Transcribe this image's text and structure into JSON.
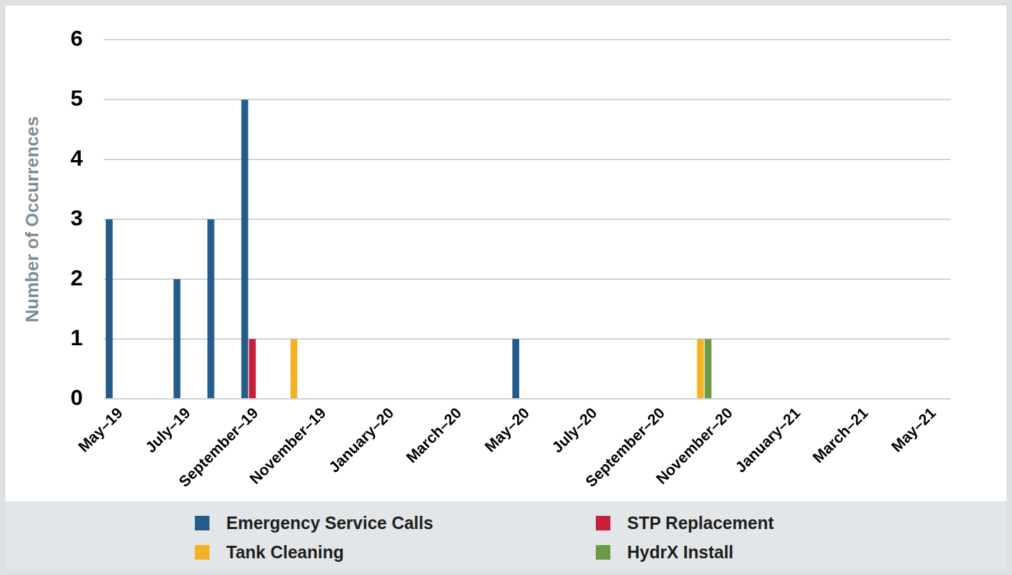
{
  "chart_data": {
    "type": "bar",
    "categories": [
      "May–19",
      null,
      "July–19",
      null,
      "September–19",
      null,
      "November–19",
      null,
      "January–20",
      null,
      "March–20",
      null,
      "May–20",
      null,
      "July–20",
      null,
      "September–20",
      null,
      "November–20",
      null,
      "January–21",
      null,
      "March–21",
      null,
      "May–21"
    ],
    "series": [
      {
        "name": "Emergency Service Calls",
        "color": "#245d8c",
        "values": [
          3,
          0,
          2,
          3,
          5,
          0,
          0,
          0,
          0,
          0,
          0,
          0,
          1,
          0,
          0,
          0,
          0,
          0,
          0,
          0,
          0,
          0,
          0,
          0,
          0
        ]
      },
      {
        "name": "STP Replacement",
        "color": "#c8203a",
        "values": [
          0,
          0,
          0,
          0,
          1,
          0,
          0,
          0,
          0,
          0,
          0,
          0,
          0,
          0,
          0,
          0,
          0,
          0,
          0,
          0,
          0,
          0,
          0,
          0,
          0
        ]
      },
      {
        "name": "Tank Cleaning",
        "color": "#f4b223",
        "values": [
          0,
          0,
          0,
          0,
          0,
          1,
          0,
          0,
          0,
          0,
          0,
          0,
          0,
          0,
          0,
          0,
          0,
          1,
          0,
          0,
          0,
          0,
          0,
          0,
          0
        ]
      },
      {
        "name": "HydrX Install",
        "color": "#6b9a47",
        "values": [
          0,
          0,
          0,
          0,
          0,
          0,
          0,
          0,
          0,
          0,
          0,
          0,
          0,
          0,
          0,
          0,
          0,
          1,
          0,
          0,
          0,
          0,
          0,
          0,
          0
        ]
      }
    ],
    "ylabel": "Number of Occurrences",
    "ylim": [
      0,
      6
    ],
    "yticks": [
      0,
      1,
      2,
      3,
      4,
      5,
      6
    ],
    "grid": true,
    "legend": "bottom"
  }
}
